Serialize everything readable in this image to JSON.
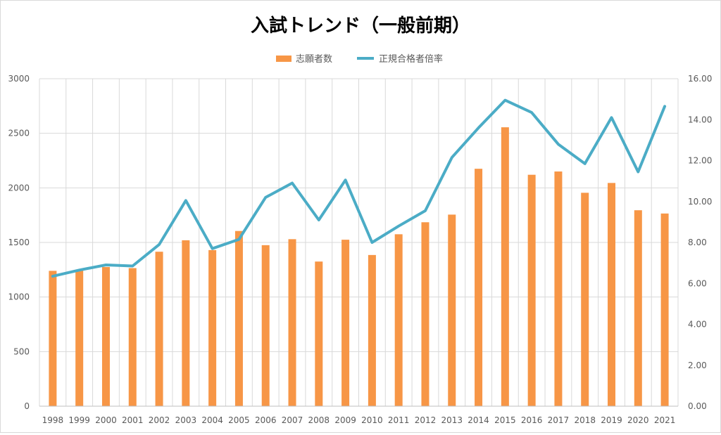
{
  "chart_data": {
    "type": "bar",
    "title": "入試トレンド（一般前期）",
    "categories": [
      "1998",
      "1999",
      "2000",
      "2001",
      "2002",
      "2003",
      "2004",
      "2005",
      "2006",
      "2007",
      "2008",
      "2009",
      "2010",
      "2011",
      "2012",
      "2013",
      "2014",
      "2015",
      "2016",
      "2017",
      "2018",
      "2019",
      "2020",
      "2021"
    ],
    "series": [
      {
        "name": "志願者数",
        "type": "bar",
        "axis": "left",
        "color": "#f79646",
        "values": [
          1240,
          1250,
          1275,
          1265,
          1415,
          1520,
          1430,
          1605,
          1475,
          1530,
          1325,
          1525,
          1385,
          1575,
          1685,
          1755,
          2175,
          2555,
          2120,
          2150,
          1955,
          2045,
          1795,
          1765
        ]
      },
      {
        "name": "正規合格者倍率",
        "type": "line",
        "axis": "right",
        "color": "#4bacc6",
        "values": [
          6.35,
          6.65,
          6.9,
          6.85,
          7.9,
          10.05,
          7.7,
          8.15,
          10.2,
          10.9,
          9.1,
          11.05,
          8.0,
          8.8,
          9.55,
          12.15,
          13.6,
          14.95,
          14.35,
          12.8,
          11.85,
          14.1,
          11.45,
          14.65
        ]
      }
    ],
    "ylim_left": [
      0,
      3000
    ],
    "yticks_left": [
      "0",
      "500",
      "1000",
      "1500",
      "2000",
      "2500",
      "3000"
    ],
    "ylim_right": [
      0,
      16
    ],
    "yticks_right": [
      "0.00",
      "2.00",
      "4.00",
      "6.00",
      "8.00",
      "10.00",
      "12.00",
      "14.00",
      "16.00"
    ],
    "legend_position": "top-center",
    "grid": true,
    "gridline_color": "#d9d9d9",
    "axis_label_color": "#595959",
    "title_color": "#000000"
  }
}
